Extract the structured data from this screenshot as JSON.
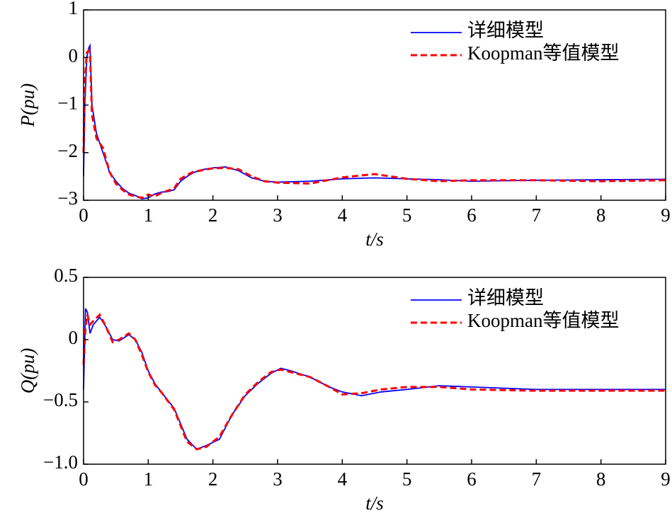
{
  "chart_data": [
    {
      "type": "line",
      "ylabel": "P(pu)",
      "xlabel": "t/s",
      "legend": "upper right",
      "xlim": [
        0,
        9
      ],
      "xticks": [
        0,
        1,
        2,
        3,
        4,
        5,
        6,
        7,
        8,
        9
      ],
      "ylim": [
        -3,
        1
      ],
      "yticks": [
        {
          "value": -3,
          "label": "−3"
        },
        {
          "value": -2,
          "label": "−2"
        },
        {
          "value": -1,
          "label": "−1"
        },
        0,
        1
      ],
      "x": [
        0,
        0.02,
        0.05,
        0.08,
        0.1,
        0.13,
        0.2,
        0.3,
        0.4,
        0.5,
        0.6,
        0.7,
        0.8,
        0.9,
        1.0,
        1.1,
        1.2,
        1.3,
        1.4,
        1.5,
        1.6,
        1.7,
        1.8,
        1.9,
        2.0,
        2.2,
        2.4,
        2.6,
        2.8,
        3.0,
        3.5,
        4.0,
        4.5,
        5,
        5.5,
        6,
        7,
        8,
        9
      ],
      "series": [
        {
          "name": "详细模型",
          "color": "#0000ff",
          "dash": false,
          "values": [
            -2.5,
            -1.0,
            0.0,
            0.2,
            0.25,
            -1.0,
            -1.6,
            -2.0,
            -2.4,
            -2.6,
            -2.75,
            -2.85,
            -2.9,
            -2.97,
            -2.95,
            -2.87,
            -2.83,
            -2.82,
            -2.78,
            -2.6,
            -2.5,
            -2.42,
            -2.37,
            -2.34,
            -2.32,
            -2.3,
            -2.38,
            -2.53,
            -2.6,
            -2.62,
            -2.6,
            -2.55,
            -2.53,
            -2.55,
            -2.57,
            -2.6,
            -2.58,
            -2.57,
            -2.56
          ]
        },
        {
          "name": "Koopman等值模型",
          "color": "#ff0000",
          "dash": true,
          "values": [
            -2.0,
            -0.5,
            0.1,
            0.15,
            0.1,
            -1.2,
            -1.7,
            -1.9,
            -2.4,
            -2.65,
            -2.78,
            -2.88,
            -2.92,
            -2.95,
            -2.88,
            -2.92,
            -2.85,
            -2.8,
            -2.75,
            -2.55,
            -2.47,
            -2.4,
            -2.38,
            -2.35,
            -2.33,
            -2.32,
            -2.35,
            -2.5,
            -2.6,
            -2.63,
            -2.65,
            -2.52,
            -2.45,
            -2.55,
            -2.6,
            -2.58,
            -2.58,
            -2.6,
            -2.58
          ]
        }
      ]
    },
    {
      "type": "line",
      "ylabel": "Q(pu)",
      "xlabel": "t/s",
      "legend": "upper right",
      "xlim": [
        0,
        9
      ],
      "xticks": [
        0,
        1,
        2,
        3,
        4,
        5,
        6,
        7,
        8,
        9
      ],
      "ylim": [
        -1.0,
        0.5
      ],
      "yticks": [
        {
          "value": -1.0,
          "label": "−1.0"
        },
        {
          "value": -0.5,
          "label": "−0.5"
        },
        0,
        0.5
      ],
      "x": [
        0,
        0.03,
        0.06,
        0.1,
        0.15,
        0.25,
        0.35,
        0.45,
        0.55,
        0.7,
        0.8,
        0.9,
        1.0,
        1.1,
        1.2,
        1.4,
        1.6,
        1.75,
        1.9,
        2.1,
        2.3,
        2.5,
        2.7,
        2.9,
        3.05,
        3.2,
        3.5,
        3.8,
        4.0,
        4.3,
        4.6,
        5.0,
        5.5,
        6,
        7,
        8,
        9
      ],
      "series": [
        {
          "name": "详细模型",
          "color": "#0000ff",
          "dash": false,
          "values": [
            -0.4,
            0.25,
            0.22,
            0.05,
            0.12,
            0.18,
            0.1,
            0.0,
            -0.01,
            0.04,
            0.0,
            -0.1,
            -0.25,
            -0.35,
            -0.42,
            -0.55,
            -0.8,
            -0.88,
            -0.85,
            -0.8,
            -0.6,
            -0.45,
            -0.35,
            -0.27,
            -0.23,
            -0.25,
            -0.3,
            -0.38,
            -0.42,
            -0.45,
            -0.42,
            -0.4,
            -0.37,
            -0.38,
            -0.4,
            -0.4,
            -0.4
          ]
        },
        {
          "name": "Koopman等值模型",
          "color": "#ff0000",
          "dash": true,
          "values": [
            -0.2,
            0.1,
            0.2,
            0.12,
            0.15,
            0.2,
            0.1,
            -0.02,
            0.0,
            0.05,
            0.0,
            -0.12,
            -0.26,
            -0.36,
            -0.42,
            -0.56,
            -0.82,
            -0.88,
            -0.86,
            -0.78,
            -0.6,
            -0.44,
            -0.34,
            -0.26,
            -0.24,
            -0.26,
            -0.3,
            -0.38,
            -0.44,
            -0.43,
            -0.4,
            -0.38,
            -0.38,
            -0.4,
            -0.41,
            -0.41,
            -0.41
          ]
        }
      ]
    }
  ]
}
